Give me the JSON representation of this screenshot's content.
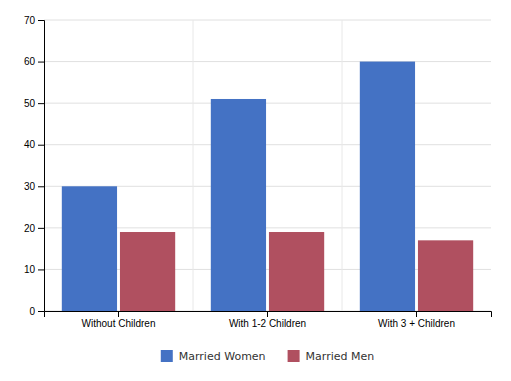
{
  "chart_data": {
    "type": "bar",
    "categories": [
      "Without Children",
      "With 1-2 Children",
      "With 3 + Children"
    ],
    "series": [
      {
        "name": "Married Women",
        "color": "#4472C4",
        "values": [
          30,
          51,
          60
        ]
      },
      {
        "name": "Married Men",
        "color": "#B05060",
        "values": [
          19,
          19,
          17
        ]
      }
    ],
    "ylim": [
      0,
      70
    ],
    "yticks": [
      0,
      10,
      20,
      30,
      40,
      50,
      60,
      70
    ],
    "grid": true,
    "legend": "bottom"
  }
}
